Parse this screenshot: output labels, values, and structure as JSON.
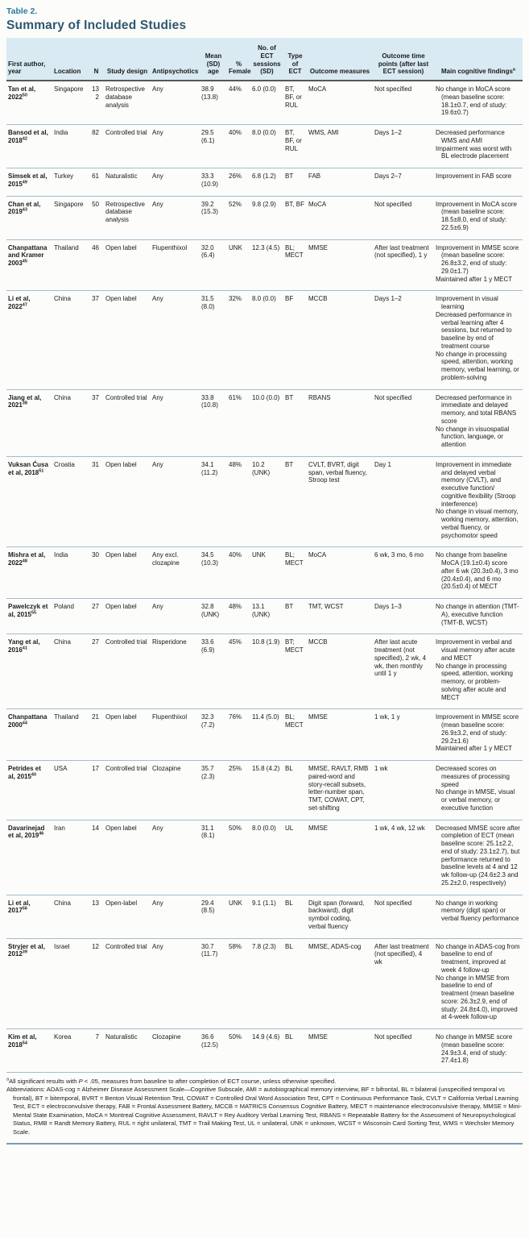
{
  "header": {
    "table_label": "Table 2.",
    "title": "Summary of Included Studies"
  },
  "colors": {
    "table_label": "#2a7c99",
    "title": "#2e5871",
    "header_band_bg": "#d9eaf2",
    "header_rule": "#58585a",
    "row_separator": "#a3bccd",
    "bottom_rule": "#7d9cb5"
  },
  "table": {
    "columns": [
      "First author, year",
      "Location",
      "N",
      "Study design",
      "Antipsychotics",
      "Mean (SD) age",
      "% Female",
      "No. of ECT sessions (SD)",
      "Type of ECT",
      "Outcome measures",
      "Outcome time points (after last ECT session)",
      "Main cognitive findings"
    ],
    "findings_header_sup": "a",
    "rows": [
      {
        "author": "Tan et al, 2022",
        "ref": "50",
        "location": "Singapore",
        "n": "132",
        "design": "Retrospective database analysis",
        "antipsychotics": "Any",
        "age": "38.9 (13.8)",
        "female": "44%",
        "sessions": "6.0 (0.0)",
        "ect_type": "BT, BF, or RUL",
        "outcome_measures": "MoCA",
        "time_points": "Not specified",
        "findings": [
          "No change in MoCA score (mean baseline score: 18.1±0.7, end of study: 19.6±0.7)"
        ]
      },
      {
        "author": "Bansod et al, 2018",
        "ref": "42",
        "location": "India",
        "n": "82",
        "design": "Controlled trial",
        "antipsychotics": "Any",
        "age": "29.5 (6.1)",
        "female": "40%",
        "sessions": "8.0 (0.0)",
        "ect_type": "BT, BF, or RUL",
        "outcome_measures": "WMS, AMI",
        "time_points": "Days 1–2",
        "findings": [
          "Decreased performance WMS and AMI",
          "Impairment was worst with BL electrode placement"
        ]
      },
      {
        "author": "Simsek et al, 2015",
        "ref": "49",
        "location": "Turkey",
        "n": "61",
        "design": "Naturalistic",
        "antipsychotics": "Any",
        "age": "33.3 (10.9)",
        "female": "26%",
        "sessions": "6.8 (1.2)",
        "ect_type": "BT",
        "outcome_measures": "FAB",
        "time_points": "Days 2–7",
        "findings": [
          "Improvement in FAB score"
        ]
      },
      {
        "author": "Chan et al, 2019",
        "ref": "43",
        "location": "Singapore",
        "n": "50",
        "design": "Retrospective database analysis",
        "antipsychotics": "Any",
        "age": "39.2 (15.3)",
        "female": "52%",
        "sessions": "9.8 (2.9)",
        "ect_type": "BT, BF",
        "outcome_measures": "MoCA",
        "time_points": "Not specified",
        "findings": [
          "Improvement in MoCA score (mean baseline score: 18.5±8.0, end of study: 22.5±6.9)"
        ]
      },
      {
        "author": "Chanpattana and Kramer 2003",
        "ref": "45",
        "location": "Thailand",
        "n": "46",
        "design": "Open label",
        "antipsychotics": "Flupenthixol",
        "age": "32.0 (6.4)",
        "female": "UNK",
        "sessions": "12.3 (4.5)",
        "ect_type": "BL; MECT",
        "outcome_measures": "MMSE",
        "time_points": "After last treatment (not specified), 1 y",
        "findings": [
          "Improvement in MMSE score (mean baseline score: 26.8±3.2, end of study: 29.0±1.7)",
          "Maintained after 1 y MECT"
        ]
      },
      {
        "author": "Li et al, 2022",
        "ref": "47",
        "location": "China",
        "n": "37",
        "design": "Open label",
        "antipsychotics": "Any",
        "age": "31.5 (8.0)",
        "female": "32%",
        "sessions": "8.0 (0.0)",
        "ect_type": "BF",
        "outcome_measures": "MCCB",
        "time_points": "Days 1–2",
        "findings": [
          "Improvement in visual learning",
          "Decreased performance in verbal learning after 4 sessions, but returned to baseline by end of treatment course",
          "No change in processing speed, attention, working memory, verbal learning, or problem-solving"
        ]
      },
      {
        "author": "Jiang et al, 2021",
        "ref": "38",
        "location": "China",
        "n": "37",
        "design": "Controlled trial",
        "antipsychotics": "Any",
        "age": "33.8 (10.8)",
        "female": "61%",
        "sessions": "10.0 (0.0)",
        "ect_type": "BT",
        "outcome_measures": "RBANS",
        "time_points": "Not specified",
        "findings": [
          "Decreased performance in immediate and delayed memory, and total RBANS score",
          "No change in visuospatial function, language, or attention"
        ]
      },
      {
        "author": "Vuksan Ćusa et al, 2018",
        "ref": "51",
        "location": "Croatia",
        "n": "31",
        "design": "Open label",
        "antipsychotics": "Any",
        "age": "34.1 (11.2)",
        "female": "48%",
        "sessions": "10.2 (UNK)",
        "ect_type": "BT",
        "outcome_measures": "CVLT, BVRT, digit span, verbal fluency, Stroop test",
        "time_points": "Day 1",
        "findings": [
          "Improvement in immediate and delayed verbal memory (CVLT), and executive function/ cognitive flexibility (Stroop interference)",
          "No change in visual memory, working memory, attention, verbal fluency, or psychomotor speed"
        ]
      },
      {
        "author": "Mishra et al, 2022",
        "ref": "48",
        "location": "India",
        "n": "30",
        "design": "Open label",
        "antipsychotics": "Any excl. clozapine",
        "age": "34.5 (10.3)",
        "female": "40%",
        "sessions": "UNK",
        "ect_type": "BL; MECT",
        "outcome_measures": "MoCA",
        "time_points": "6 wk, 3 mo, 6 mo",
        "findings": [
          "No change from baseline MoCA (19.1±0.4) score after 6 wk (20.3±0.4), 3 mo (20.4±0.4), and 6 mo (20.5±0.4) of MECT"
        ]
      },
      {
        "author": "Pawelczyk et al, 2015",
        "ref": "55",
        "location": "Poland",
        "n": "27",
        "design": "Open label",
        "antipsychotics": "Any",
        "age": "32.8 (UNK)",
        "female": "48%",
        "sessions": "13.1 (UNK)",
        "ect_type": "BT",
        "outcome_measures": "TMT, WCST",
        "time_points": "Days 1–3",
        "findings": [
          "No change in attention (TMT-A), executive function (TMT-B, WCST)"
        ]
      },
      {
        "author": "Yang et al, 2016",
        "ref": "41",
        "location": "China",
        "n": "27",
        "design": "Controlled trial",
        "antipsychotics": "Risperidone",
        "age": "33.6 (6.9)",
        "female": "45%",
        "sessions": "10.8 (1.9)",
        "ect_type": "BT; MECT",
        "outcome_measures": "MCCB",
        "time_points": "After last acute treatment (not specified), 2 wk, 4 wk, then monthly until 1 y",
        "findings": [
          "Improvement in verbal and visual memory after acute and MECT",
          "No change in processing speed, attention, working memory, or problem-solving after acute and MECT"
        ]
      },
      {
        "author": "Chanpattana 2000",
        "ref": "44",
        "location": "Thailand",
        "n": "21",
        "design": "Open label",
        "antipsychotics": "Flupenthixol",
        "age": "32.3 (7.2)",
        "female": "76%",
        "sessions": "11.4 (5.0)",
        "ect_type": "BL; MECT",
        "outcome_measures": "MMSE",
        "time_points": "1 wk, 1 y",
        "findings": [
          "Improvement in MMSE score (mean baseline score: 26.9±3.2, end of study: 29.2±1.6)",
          "Maintained after 1 y MECT"
        ]
      },
      {
        "author": "Petrides et al, 2015",
        "ref": "40",
        "location": "USA",
        "n": "17",
        "design": "Controlled trial",
        "antipsychotics": "Clozapine",
        "age": "35.7 (2.3)",
        "female": "25%",
        "sessions": "15.8 (4.2)",
        "ect_type": "BL",
        "outcome_measures": "MMSE, RAVLT, RMB paired-word and story-recall subsets, letter-number span, TMT, COWAT, CPT, set-shifting",
        "time_points": "1 wk",
        "findings": [
          "Decreased scores on measures of processing speed",
          "No change in MMSE, visual or verbal memory, or executive function"
        ]
      },
      {
        "author": "Davarinejad et al, 2019",
        "ref": "46",
        "location": "Iran",
        "n": "14",
        "design": "Open label",
        "antipsychotics": "Any",
        "age": "31.1 (8.1)",
        "female": "50%",
        "sessions": "8.0 (0.0)",
        "ect_type": "UL",
        "outcome_measures": "MMSE",
        "time_points": "1 wk, 4 wk, 12 wk",
        "findings": [
          "Decreased MMSE score after completion of ECT (mean baseline score: 25.1±2.2, end of study: 23.1±2.7), but performance returned to baseline levels at 4 and 12 wk follow-up (24.6±2.3 and 25.2±2.0, respectively)"
        ]
      },
      {
        "author": "Li et al, 2017",
        "ref": "56",
        "location": "China",
        "n": "13",
        "design": "Open-label",
        "antipsychotics": "Any",
        "age": "29.4 (8.5)",
        "female": "UNK",
        "sessions": "9.1 (1.1)",
        "ect_type": "BL",
        "outcome_measures": "Digit span (forward, backward), digit symbol coding, verbal fluency",
        "time_points": "Not specified",
        "findings": [
          "No change in working memory (digit span) or verbal fluency performance"
        ]
      },
      {
        "author": "Stryjer et al, 2012",
        "ref": "39",
        "location": "Israel",
        "n": "12",
        "design": "Controlled trial",
        "antipsychotics": "Any",
        "age": "30.7 (11.7)",
        "female": "58%",
        "sessions": "7.8 (2.3)",
        "ect_type": "BL",
        "outcome_measures": "MMSE, ADAS-cog",
        "time_points": "After last treatment (not specified), 4 wk",
        "findings": [
          "No change in ADAS-cog from baseline to end of treatment, improved at week 4 follow-up",
          "No change in MMSE from baseline to end of treatment (mean baseline score: 26.3±2.9, end of study: 24.8±4.0), improved at 4-week follow-up"
        ]
      },
      {
        "author": "Kim et al, 2018",
        "ref": "54",
        "location": "Korea",
        "n": "7",
        "design": "Naturalistic",
        "antipsychotics": "Clozapine",
        "age": "36.6 (12.5)",
        "female": "50%",
        "sessions": "14.9 (4.6)",
        "ect_type": "BL",
        "outcome_measures": "MMSE",
        "time_points": "Not specified",
        "findings": [
          "No change in MMSE score (mean baseline score: 24.9±3.4, end of study: 27.4±1.8)"
        ]
      }
    ]
  },
  "footnotes": {
    "marker": "a",
    "significance_pre": "All significant results with ",
    "significance_p": "P",
    "significance_post": " < .05, measures from baseline to after completion of ECT course, unless otherwise specified.",
    "abbreviations": "Abbreviations: ADAS-cog = Alzheimer Disease Assessment Scale—Cognitive Subscale, AMI = autobiographical memory interview, BF = bifrontal, BL = bilateral (unspecified temporal vs frontal), BT = bitemporal, BVRT = Benton Visual Retention Test, COWAT = Controlled Oral Word Association Test, CPT = Continuous Performance Task, CVLT = California Verbal Learning Test, ECT = electroconvulsive therapy, FAB = Frontal Assessment Battery, MCCB = MATRICS Consensus Cognitive Battery, MECT = maintenance electroconvulsive therapy, MMSE = Mini-Mental State Examination, MoCA = Montreal Cognitive Assessment, RAVLT = Rey Auditory Verbal Learning Test, RBANS = Repeatable Battery for the Assessment of Neuropsychological Status, RMB = Randt Memory Battery, RUL = right unilateral, TMT = Trail Making Test, UL = unilateral, UNK = unknown, WCST = Wisconsin Card Sorting Test, WMS = Wechsler Memory Scale."
  }
}
